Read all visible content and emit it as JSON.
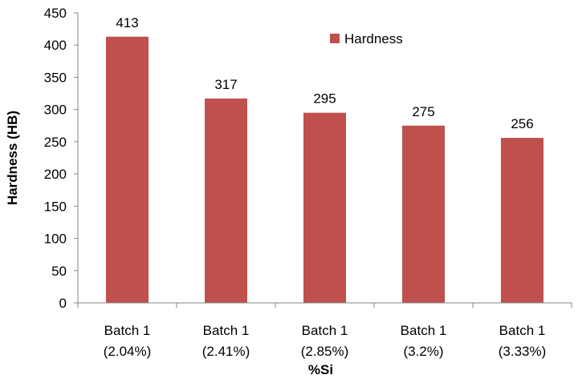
{
  "chart_data": {
    "type": "bar",
    "categories": [
      [
        "Batch 1",
        "(2.04%)"
      ],
      [
        "Batch 1",
        "(2.41%)"
      ],
      [
        "Batch 1",
        "(2.85%)"
      ],
      [
        "Batch 1",
        "(3.2%)"
      ],
      [
        "Batch 1",
        "(3.33%)"
      ]
    ],
    "series": [
      {
        "name": "Hardness",
        "values": [
          413,
          317,
          295,
          275,
          256
        ],
        "color": "#C0504D"
      }
    ],
    "xlabel": "%Si",
    "ylabel": "Hardness (HB)",
    "ylim": [
      0,
      450
    ],
    "yticks": [
      0,
      50,
      100,
      150,
      200,
      250,
      300,
      350,
      400,
      450
    ],
    "grid": false,
    "legend_position": "top-right",
    "data_labels": true
  }
}
